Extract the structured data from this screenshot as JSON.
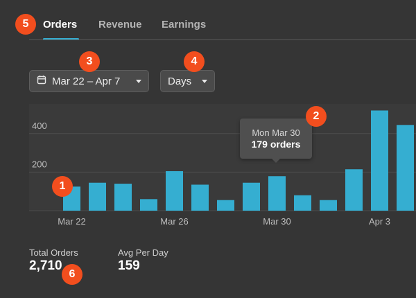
{
  "tabs": [
    {
      "label": "Orders",
      "active": true
    },
    {
      "label": "Revenue",
      "active": false
    },
    {
      "label": "Earnings",
      "active": false
    }
  ],
  "filters": {
    "date_range": {
      "icon": "calendar-icon",
      "value": "Mar 22 – Apr 7"
    },
    "granularity": {
      "value": "Days"
    }
  },
  "tooltip": {
    "date": "Mon Mar 30",
    "value": "179 orders"
  },
  "summary": {
    "total_label": "Total Orders",
    "total_value": "2,710",
    "avg_label": "Avg Per Day",
    "avg_value": "159"
  },
  "annotations": [
    "1",
    "2",
    "3",
    "4",
    "5",
    "6"
  ],
  "colors": {
    "bar": "#35aed1",
    "accent": "#35aed1",
    "marker": "#f24e1e"
  },
  "chart_data": {
    "type": "bar",
    "x": [
      "Mar 22",
      "Mar 23",
      "Mar 24",
      "Mar 25",
      "Mar 26",
      "Mar 27",
      "Mar 28",
      "Mar 29",
      "Mar 30",
      "Mar 31",
      "Apr 1",
      "Apr 2",
      "Apr 3",
      "Apr 4"
    ],
    "values": [
      125,
      145,
      140,
      60,
      205,
      135,
      55,
      145,
      179,
      80,
      55,
      215,
      520,
      445
    ],
    "y_ticks": [
      200,
      400
    ],
    "x_tick_labels": [
      "Mar 22",
      "Mar 26",
      "Mar 30",
      "Apr 3"
    ],
    "ylim": [
      0,
      520
    ],
    "grid": true,
    "highlight": "Mar 30"
  }
}
